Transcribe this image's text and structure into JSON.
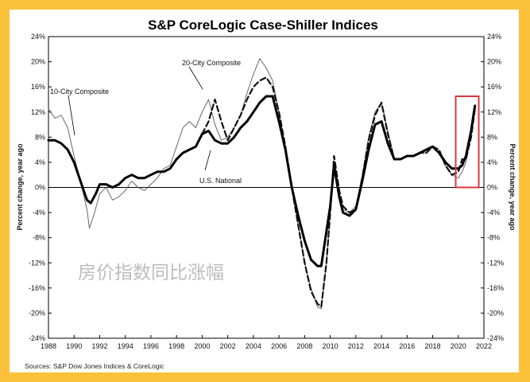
{
  "chart_data": {
    "type": "line",
    "title": "S&P CoreLogic Case-Shiller Indices",
    "ylabel_left": "Percent change, year ago",
    "ylabel_right": "Percent change, year ago",
    "ylim": [
      -24,
      24
    ],
    "xlim": [
      1988,
      2022
    ],
    "y_ticks": [
      "24%",
      "20%",
      "16%",
      "12%",
      "8%",
      "4%",
      "0%",
      "-4%",
      "-8%",
      "-12%",
      "-16%",
      "-20%",
      "-24%"
    ],
    "y_tick_values": [
      24,
      20,
      16,
      12,
      8,
      4,
      0,
      -4,
      -8,
      -12,
      -16,
      -20,
      -24
    ],
    "x_ticks": [
      "1988",
      "1990",
      "1992",
      "1994",
      "1996",
      "1998",
      "2000",
      "2002",
      "2004",
      "2006",
      "2008",
      "2010",
      "2012",
      "2014",
      "2016",
      "2018",
      "2020",
      "2022"
    ],
    "grid": false,
    "series": [
      {
        "name": "10-City Composite",
        "style": "thin-gray",
        "color": "#555555",
        "x": [
          1988.0,
          1988.5,
          1989.0,
          1989.5,
          1990.0,
          1990.5,
          1991.0,
          1991.2,
          1991.6,
          1992.0,
          1992.5,
          1993.0,
          1993.5,
          1994.0,
          1994.5,
          1995.0,
          1995.5,
          1996.0,
          1996.5,
          1997.0,
          1997.5,
          1998.0,
          1998.5,
          1999.0,
          1999.5,
          2000.0,
          2000.5,
          2001.0,
          2001.5,
          2002.0,
          2002.5,
          2003.0,
          2003.5,
          2004.0,
          2004.5,
          2005.0,
          2005.5,
          2006.0,
          2006.5,
          2007.0,
          2007.5,
          2008.0,
          2008.5,
          2009.0,
          2009.3,
          2009.7,
          2010.0,
          2010.3,
          2010.7,
          2011.0,
          2011.5,
          2012.0,
          2012.5,
          2013.0,
          2013.5,
          2014.0,
          2014.5,
          2015.0,
          2015.5,
          2016.0,
          2016.5,
          2017.0,
          2017.5,
          2018.0,
          2018.5,
          2019.0,
          2019.5,
          2020.0,
          2020.3,
          2020.6,
          2021.0,
          2021.3
        ],
        "values": [
          12.5,
          11.0,
          11.5,
          9.5,
          5.0,
          1.0,
          -3.5,
          -6.5,
          -4.0,
          -1.0,
          0.0,
          -2.0,
          -1.5,
          -0.5,
          1.0,
          0.0,
          -0.5,
          0.5,
          1.5,
          3.0,
          3.5,
          6.5,
          9.5,
          10.5,
          9.5,
          12.0,
          14.0,
          10.0,
          7.5,
          8.0,
          9.5,
          11.5,
          15.0,
          18.0,
          20.5,
          19.0,
          17.0,
          12.0,
          6.0,
          0.0,
          -6.0,
          -12.0,
          -16.0,
          -19.0,
          -19.3,
          -12.0,
          -4.0,
          4.0,
          -1.0,
          -3.5,
          -4.0,
          -3.0,
          2.0,
          8.0,
          12.0,
          13.5,
          9.0,
          4.5,
          4.5,
          5.0,
          5.0,
          5.5,
          5.5,
          6.5,
          5.5,
          3.5,
          2.0,
          1.5,
          2.5,
          4.0,
          8.5,
          12.5
        ]
      },
      {
        "name": "20-City Composite",
        "style": "dashed-black",
        "color": "#111111",
        "x": [
          2000.0,
          2000.5,
          2001.0,
          2001.5,
          2002.0,
          2002.5,
          2003.0,
          2003.5,
          2004.0,
          2004.5,
          2005.0,
          2005.5,
          2006.0,
          2006.5,
          2007.0,
          2007.5,
          2008.0,
          2008.5,
          2009.0,
          2009.3,
          2009.7,
          2010.0,
          2010.3,
          2010.7,
          2011.0,
          2011.5,
          2012.0,
          2012.5,
          2013.0,
          2013.5,
          2014.0,
          2014.5,
          2015.0,
          2015.5,
          2016.0,
          2016.5,
          2017.0,
          2017.5,
          2018.0,
          2018.5,
          2019.0,
          2019.5,
          2020.0,
          2020.3,
          2020.6,
          2021.0,
          2021.3
        ],
        "values": [
          8.5,
          10.5,
          14.0,
          10.5,
          7.5,
          9.5,
          11.5,
          14.0,
          16.0,
          17.0,
          17.5,
          16.0,
          12.0,
          6.5,
          0.0,
          -6.0,
          -12.0,
          -16.5,
          -18.5,
          -19.0,
          -12.0,
          -4.0,
          5.0,
          -0.5,
          -3.0,
          -4.0,
          -3.5,
          1.5,
          7.5,
          11.5,
          13.5,
          8.5,
          4.5,
          4.5,
          5.0,
          5.0,
          5.5,
          5.5,
          6.5,
          6.0,
          3.5,
          2.0,
          2.5,
          4.5,
          4.5,
          8.0,
          12.5
        ]
      },
      {
        "name": "U.S. National",
        "style": "thick-black",
        "color": "#000000",
        "x": [
          1988.0,
          1988.5,
          1989.0,
          1989.5,
          1990.0,
          1990.5,
          1991.0,
          1991.3,
          1991.7,
          1992.0,
          1992.5,
          1993.0,
          1993.5,
          1994.0,
          1994.5,
          1995.0,
          1995.5,
          1996.0,
          1996.5,
          1997.0,
          1997.5,
          1998.0,
          1998.5,
          1999.0,
          1999.5,
          2000.0,
          2000.5,
          2001.0,
          2001.5,
          2002.0,
          2002.5,
          2003.0,
          2003.5,
          2004.0,
          2004.5,
          2005.0,
          2005.5,
          2006.0,
          2006.5,
          2007.0,
          2007.5,
          2008.0,
          2008.5,
          2009.0,
          2009.3,
          2009.7,
          2010.0,
          2010.3,
          2010.7,
          2011.0,
          2011.5,
          2012.0,
          2012.5,
          2013.0,
          2013.5,
          2014.0,
          2014.5,
          2015.0,
          2015.5,
          2016.0,
          2016.5,
          2017.0,
          2017.5,
          2018.0,
          2018.5,
          2019.0,
          2019.5,
          2020.0,
          2020.3,
          2020.6,
          2021.0,
          2021.3
        ],
        "values": [
          7.5,
          7.5,
          7.0,
          6.0,
          4.0,
          1.0,
          -2.0,
          -2.5,
          -1.0,
          0.5,
          0.5,
          0.0,
          0.5,
          1.5,
          2.0,
          1.5,
          1.5,
          2.0,
          2.5,
          2.5,
          3.0,
          4.5,
          5.5,
          6.0,
          6.5,
          8.5,
          9.0,
          7.5,
          7.0,
          7.0,
          8.0,
          9.5,
          10.5,
          12.0,
          13.5,
          14.5,
          14.5,
          10.5,
          6.0,
          0.0,
          -4.5,
          -8.5,
          -11.5,
          -12.5,
          -12.5,
          -7.0,
          -3.0,
          3.5,
          -1.5,
          -4.0,
          -4.5,
          -3.5,
          1.0,
          6.0,
          10.0,
          10.5,
          7.0,
          4.5,
          4.5,
          5.0,
          5.0,
          5.5,
          6.0,
          6.5,
          5.5,
          4.0,
          3.0,
          3.0,
          3.5,
          5.0,
          9.0,
          13.0
        ]
      }
    ],
    "annotations": [
      {
        "text": "10-City Composite",
        "target_series": "10-City Composite"
      },
      {
        "text": "20-City Composite",
        "target_series": "20-City Composite"
      },
      {
        "text": "U.S. National",
        "target_series": "U.S. National"
      }
    ],
    "highlight_color": "#D9393F",
    "highlight_x_range": [
      2019.8,
      2021.6
    ],
    "highlight_y_range": [
      0,
      14.5
    ]
  },
  "watermark": "房价指数同比涨幅",
  "source": "Sources: S&P Dow Jones Indices & CoreLogic",
  "frame_color": "#FCC13A"
}
